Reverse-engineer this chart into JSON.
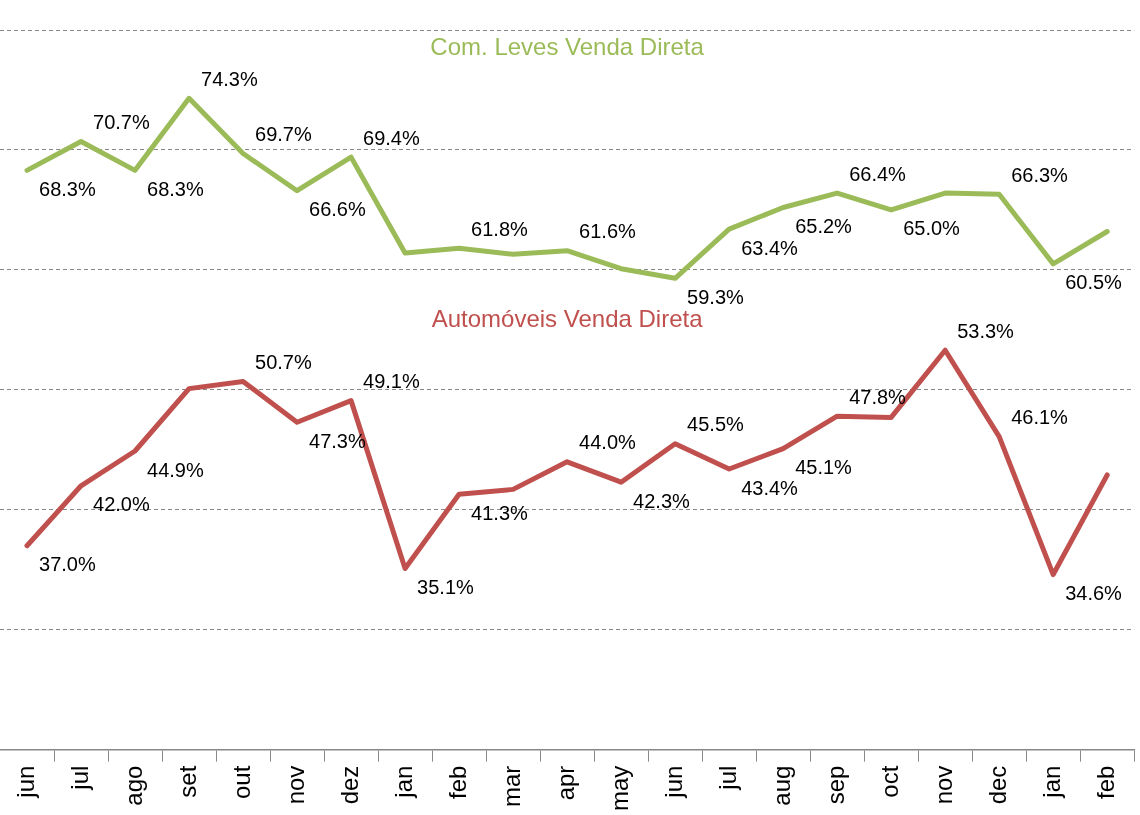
{
  "chart_data": {
    "type": "line",
    "categories": [
      "jun",
      "jul",
      "ago",
      "set",
      "out",
      "nov",
      "dez",
      "jan",
      "feb",
      "mar",
      "apr",
      "may",
      "jun",
      "jul",
      "aug",
      "sep",
      "oct",
      "nov",
      "dec",
      "jan",
      "feb"
    ],
    "series": [
      {
        "name": "Com. Leves Venda Direta",
        "color": "#9bbb59",
        "values": [
          68.3,
          70.7,
          68.3,
          74.3,
          69.7,
          66.6,
          69.4,
          61.4,
          61.8,
          61.3,
          61.6,
          60.1,
          59.3,
          63.4,
          65.2,
          66.4,
          65.0,
          66.4,
          66.3,
          60.5,
          63.2
        ],
        "value_labels": [
          "68.3%",
          "70.7%",
          "68.3%",
          "74.3%",
          "69.7%",
          "66.6%",
          "69.4%",
          null,
          "61.8%",
          null,
          "61.6%",
          null,
          "59.3%",
          "63.4%",
          "65.2%",
          "66.4%",
          "65.0%",
          null,
          "66.3%",
          "60.5%",
          null
        ]
      },
      {
        "name": "Automóveis Venda Direta",
        "color": "#c0504d",
        "values": [
          37.0,
          42.0,
          44.9,
          50.1,
          50.7,
          47.3,
          49.1,
          35.1,
          41.3,
          41.7,
          44.0,
          42.3,
          45.5,
          43.4,
          45.1,
          47.8,
          47.7,
          53.3,
          46.1,
          34.6,
          42.9
        ],
        "value_labels": [
          "37.0%",
          "42.0%",
          "44.9%",
          null,
          "50.7%",
          "47.3%",
          "49.1%",
          "35.1%",
          "41.3%",
          null,
          "44.0%",
          "42.3%",
          "45.5%",
          "43.4%",
          "45.1%",
          "47.8%",
          null,
          "53.3%",
          "46.1%",
          "34.6%",
          null
        ]
      }
    ],
    "ylim": [
      20,
      80
    ],
    "yticks": [
      {
        "value": 20,
        "label": null
      },
      {
        "value": 30,
        "label": null
      },
      {
        "value": 40,
        "label": null
      },
      {
        "value": 50,
        "label": null
      },
      {
        "value": 60,
        "label": null
      },
      {
        "value": 70,
        "label": null
      },
      {
        "value": 80,
        "label": null
      }
    ],
    "tick_labels": "x",
    "grid": "y",
    "legend": false,
    "marker": "none",
    "line_style": "solid"
  }
}
